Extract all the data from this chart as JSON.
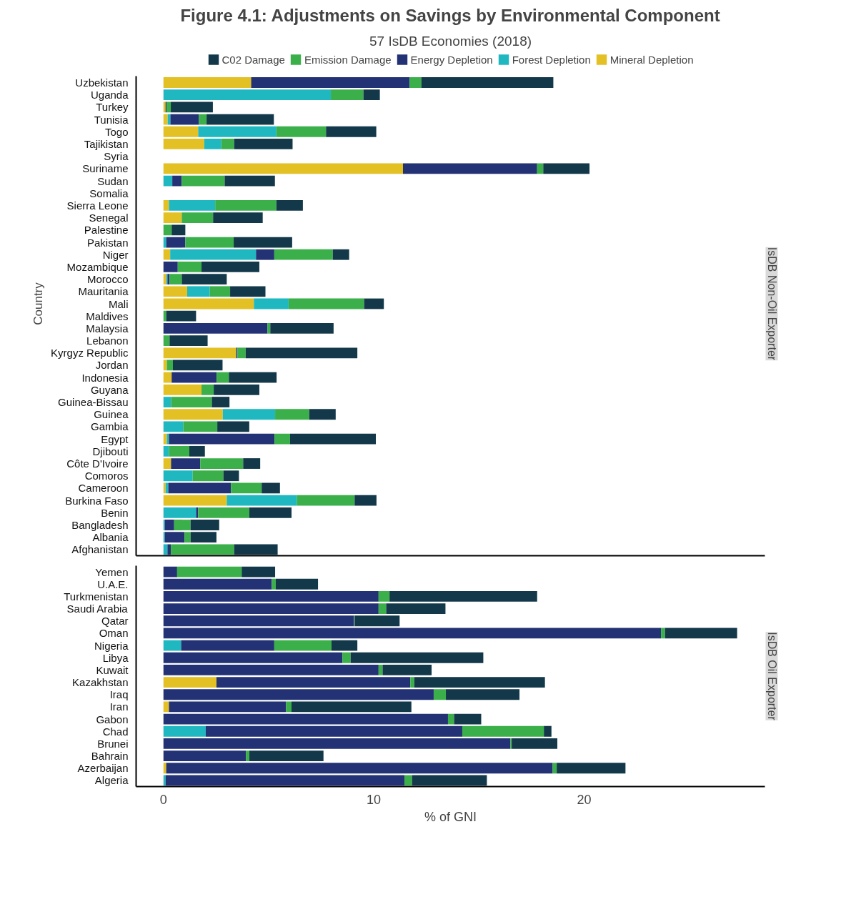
{
  "chart_data": [
    {
      "type": "bar",
      "orientation": "horizontal",
      "stacked": true,
      "title": "Figure 4.1: Adjustments on Savings by Environmental Component",
      "subtitle": "57 IsDB Economies (2018)",
      "ylabel": "Country",
      "legend": "top",
      "tick_labels": "y",
      "xlim": [
        -1.3,
        28.6
      ],
      "annotations": [
        "IsDB Non-Oil Exporter"
      ],
      "categories": [
        "Uzbekistan",
        "Uganda",
        "Turkey",
        "Tunisia",
        "Togo",
        "Tajikistan",
        "Syria",
        "Suriname",
        "Sudan",
        "Somalia",
        "Sierra Leone",
        "Senegal",
        "Palestine",
        "Pakistan",
        "Niger",
        "Mozambique",
        "Morocco",
        "Mauritania",
        "Mali",
        "Maldives",
        "Malaysia",
        "Lebanon",
        "Kyrgyz Republic",
        "Jordan",
        "Indonesia",
        "Guyana",
        "Guinea-Bissau",
        "Guinea",
        "Gambia",
        "Egypt",
        "Djibouti",
        "Côte D'Ivoire",
        "Comoros",
        "Cameroon",
        "Burkina Faso",
        "Benin",
        "Bangladesh",
        "Albania",
        "Afghanistan"
      ],
      "series": [
        {
          "name": "Mineral Depletion",
          "color": "#e3c024",
          "values": [
            4.17,
            0,
            0.1,
            0.2,
            1.65,
            1.94,
            null,
            11.39,
            0,
            null,
            0.26,
            0.87,
            0,
            0,
            0.32,
            0,
            0.13,
            1.13,
            4.3,
            0,
            0,
            0,
            3.46,
            0.16,
            0.39,
            1.81,
            0,
            2.82,
            0,
            0.16,
            0,
            0.36,
            0,
            0.1,
            3.01,
            0,
            0,
            0,
            0
          ]
        },
        {
          "name": "Forest Depletion",
          "color": "#1fb8c0",
          "values": [
            0,
            7.96,
            0,
            0.13,
            3.72,
            0.81,
            null,
            0,
            0.42,
            null,
            2.2,
            0,
            0,
            0.13,
            4.08,
            0,
            0.06,
            1.07,
            1.65,
            0,
            0,
            0,
            0,
            0,
            0,
            0,
            0.36,
            2.49,
            0.94,
            0.1,
            0.26,
            0,
            1.39,
            0.13,
            3.33,
            1.55,
            0.06,
            0.06,
            0.19
          ]
        },
        {
          "name": "Energy Depletion",
          "color": "#233274",
          "values": [
            7.54,
            0,
            0.05,
            1.36,
            0,
            0,
            null,
            6.38,
            0.45,
            null,
            0,
            0,
            0,
            0.91,
            0.87,
            0.68,
            0.1,
            0,
            0,
            0,
            4.95,
            0,
            0.06,
            0,
            2.14,
            0,
            0,
            0,
            0,
            5.02,
            0,
            1.39,
            0,
            2.98,
            0,
            0.1,
            0.45,
            0.94,
            0.16
          ]
        },
        {
          "name": "Emission Damage",
          "color": "#3bb04a",
          "values": [
            0.55,
            1.55,
            0.2,
            0.36,
            2.36,
            0.61,
            null,
            0.29,
            2.04,
            null,
            2.91,
            1.49,
            0.39,
            2.3,
            2.78,
            1.13,
            0.58,
            0.97,
            3.59,
            0.13,
            0.13,
            0.29,
            0.39,
            0.29,
            0.58,
            0.58,
            1.94,
            1.62,
            1.62,
            0.74,
            0.97,
            2.04,
            1.46,
            1.46,
            2.75,
            2.43,
            0.78,
            0.29,
            3.01
          ]
        },
        {
          "name": "C02 Damage",
          "color": "#12384a",
          "values": [
            6.28,
            0.78,
            2.0,
            3.2,
            2.39,
            2.78,
            null,
            2.2,
            2.39,
            null,
            1.26,
            2.36,
            0.65,
            2.78,
            0.78,
            2.75,
            2.14,
            1.68,
            0.94,
            1.42,
            3.01,
            1.81,
            5.31,
            2.36,
            2.27,
            2.17,
            0.84,
            1.26,
            1.52,
            4.08,
            0.74,
            0.81,
            0.74,
            0.87,
            1.04,
            2.01,
            1.36,
            1.23,
            2.07
          ]
        }
      ]
    },
    {
      "type": "bar",
      "orientation": "horizontal",
      "stacked": true,
      "xlabel": "% of GNI",
      "xlim": [
        -1.3,
        28.6
      ],
      "xticks": [
        0,
        10,
        20
      ],
      "annotations": [
        "IsDB Oil Exporter"
      ],
      "categories": [
        "Yemen",
        "U.A.E.",
        "Turkmenistan",
        "Saudi Arabia",
        "Qatar",
        "Oman",
        "Nigeria",
        "Libya",
        "Kuwait",
        "Kazakhstan",
        "Iraq",
        "Iran",
        "Gabon",
        "Chad",
        "Brunei",
        "Bahrain",
        "Azerbaijan",
        "Algeria"
      ],
      "series": [
        {
          "color": "#e3c024",
          "values": [
            0,
            0,
            0,
            0,
            0,
            0,
            0,
            0,
            0,
            2.52,
            0,
            0.26,
            0,
            0,
            0,
            0,
            0.13,
            0
          ]
        },
        {
          "color": "#1fb8c0",
          "values": [
            0,
            0,
            0,
            0,
            0,
            0,
            0.84,
            0,
            0,
            0,
            0,
            0,
            0,
            2.01,
            0,
            0,
            0,
            0.1
          ]
        },
        {
          "color": "#233274",
          "values": [
            0.65,
            5.15,
            10.23,
            10.23,
            9.06,
            23.66,
            4.43,
            8.51,
            10.23,
            9.22,
            12.85,
            5.57,
            13.53,
            12.2,
            16.5,
            3.92,
            18.38,
            11.36
          ]
        },
        {
          "color": "#3bb04a",
          "values": [
            3.07,
            0.19,
            0.52,
            0.36,
            0.03,
            0.19,
            2.72,
            0.39,
            0.19,
            0.19,
            0.58,
            0.26,
            0.29,
            3.88,
            0.06,
            0.16,
            0.19,
            0.36
          ]
        },
        {
          "color": "#12384a",
          "values": [
            1.59,
            2.01,
            7.02,
            2.82,
            2.14,
            3.43,
            1.23,
            6.31,
            2.33,
            6.21,
            3.5,
            5.7,
            1.29,
            0.36,
            2.17,
            3.53,
            3.27,
            3.56
          ]
        }
      ]
    }
  ]
}
